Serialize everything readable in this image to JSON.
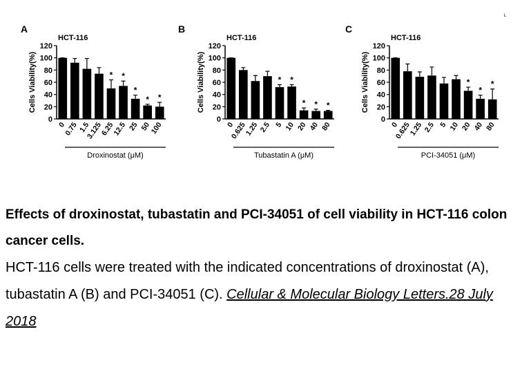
{
  "chart_data": [
    {
      "type": "bar",
      "panel": "A",
      "subtitle": "HCT-116",
      "y_label": "Cells Viability(%)",
      "x_label": "Droxinostat (μM)",
      "categories": [
        "0",
        "0.75",
        "1.5",
        "3.125",
        "6.25",
        "12.5",
        "25",
        "50",
        "100"
      ],
      "values": [
        100,
        92,
        82,
        74,
        50,
        54,
        33,
        22,
        20
      ],
      "errors": [
        0,
        7,
        17,
        10,
        14,
        8,
        6,
        2,
        7
      ],
      "significance": [
        null,
        null,
        null,
        null,
        "*",
        "*",
        "*",
        "*",
        "*"
      ],
      "color": "#000000",
      "ylim": [
        0,
        120
      ],
      "yticks": [
        0,
        20,
        40,
        60,
        80,
        100,
        120
      ]
    },
    {
      "type": "bar",
      "panel": "B",
      "subtitle": "HCT-116",
      "y_label": "Cells Viability(%)",
      "x_label": "Tubastatin A (μM)",
      "categories": [
        "0",
        "0.625",
        "1.25",
        "2.5",
        "5",
        "10",
        "20",
        "40",
        "80"
      ],
      "values": [
        100,
        80,
        62,
        70,
        52,
        53,
        14,
        13,
        13
      ],
      "errors": [
        0,
        4,
        9,
        8,
        4,
        3,
        4,
        3,
        1
      ],
      "significance": [
        null,
        null,
        null,
        null,
        "*",
        "*",
        "*",
        "*",
        "*"
      ],
      "color": "#000000",
      "ylim": [
        0,
        120
      ],
      "yticks": [
        0,
        20,
        40,
        60,
        80,
        100,
        120
      ]
    },
    {
      "type": "bar",
      "panel": "C",
      "subtitle": "HCT-116",
      "y_label": "Cells Viability(%)",
      "x_label": "PCI-34051 (μM)",
      "categories": [
        "0",
        "0.625",
        "1.25",
        "2.5",
        "5",
        "10",
        "20",
        "40",
        "80"
      ],
      "values": [
        100,
        78,
        69,
        71,
        58,
        65,
        46,
        33,
        32
      ],
      "errors": [
        0,
        12,
        8,
        14,
        10,
        6,
        6,
        6,
        17
      ],
      "significance": [
        null,
        null,
        null,
        null,
        null,
        null,
        "*",
        "*",
        "*"
      ],
      "color": "#000000",
      "ylim": [
        0,
        120
      ],
      "yticks": [
        0,
        20,
        40,
        60,
        80,
        100,
        120
      ]
    }
  ],
  "corner_mark": "L",
  "caption": {
    "title": "Effects of droxinostat, tubastatin and PCI-34051 of cell viability in HCT-116 colon cancer cells.",
    "body": "HCT-116 cells were treated with the indicated concentrations of droxinostat (A), tubastatin A (B) and PCI-34051 (C).",
    "citation": "Cellular & Molecular Biology Letters.28 July 2018"
  }
}
